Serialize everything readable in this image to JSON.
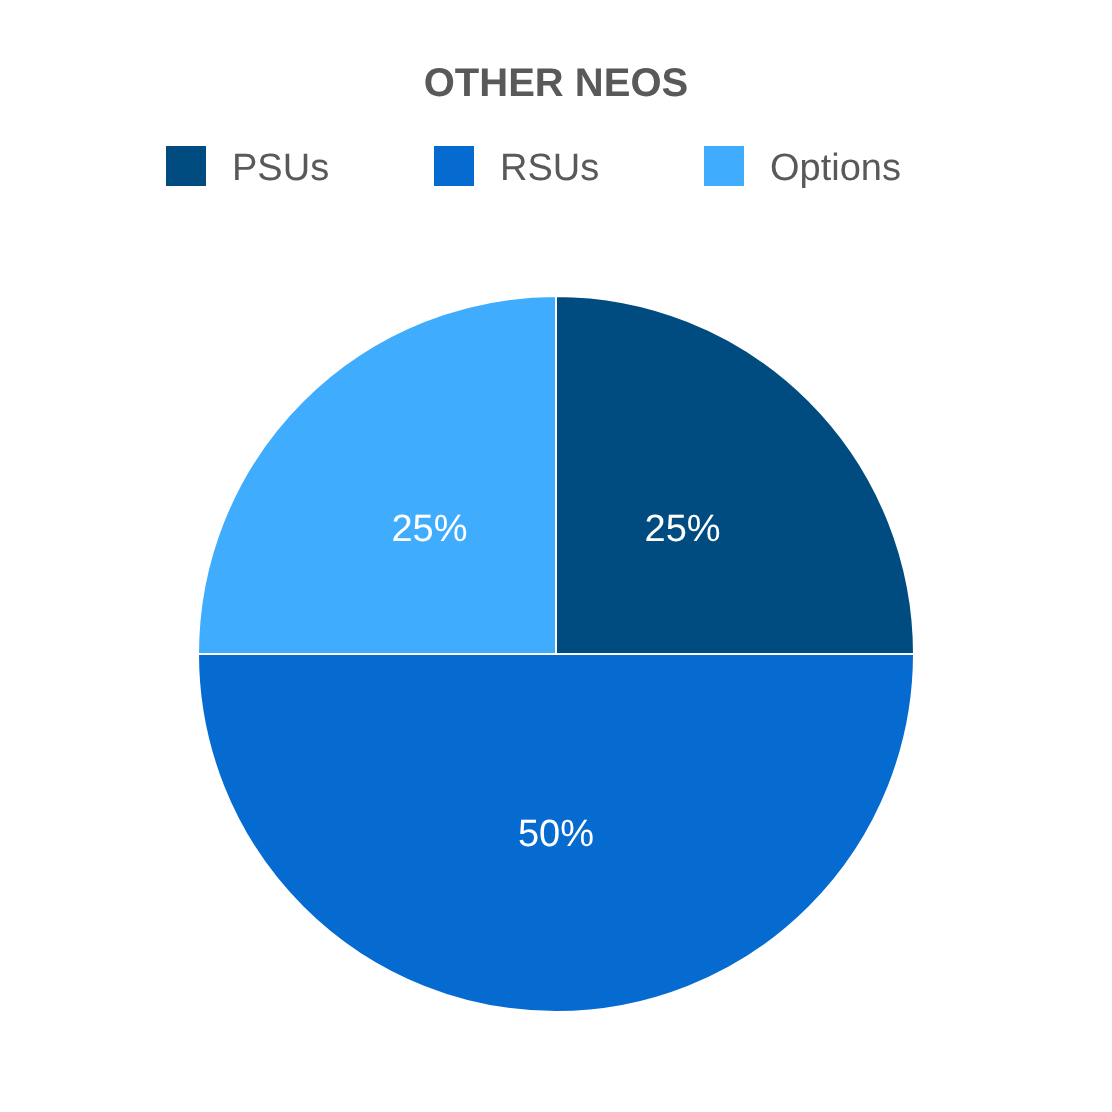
{
  "chart_data": {
    "type": "pie",
    "title": "OTHER NEOS",
    "categories": [
      "PSUs",
      "RSUs",
      "Options"
    ],
    "values": [
      25,
      50,
      25
    ],
    "value_labels": [
      "25%",
      "50%",
      "25%"
    ],
    "colors": [
      "#004b80",
      "#066bd1",
      "#40acfd"
    ],
    "legend": "top"
  }
}
